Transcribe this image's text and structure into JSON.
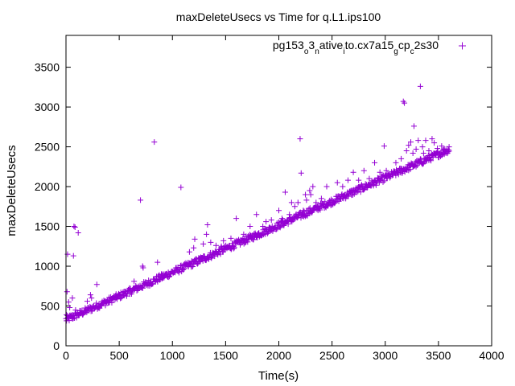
{
  "chart_data": {
    "type": "scatter",
    "title": "maxDeleteUsecs vs Time for q.L1.ips100",
    "xlabel": "Time(s)",
    "ylabel": "maxDeleteUsecs",
    "xlim": [
      0,
      4000
    ],
    "ylim": [
      0,
      3900
    ],
    "xticks": [
      0,
      500,
      1000,
      1500,
      2000,
      2500,
      3000,
      3500,
      4000
    ],
    "yticks": [
      0,
      500,
      1000,
      1500,
      2000,
      2500,
      3000,
      3500
    ],
    "grid": false,
    "legend_position": "top-right",
    "marker": "plus",
    "series": [
      {
        "name": "pg153_o3_native_ito.cx7a15_g cp_c2s30",
        "legend_parts": [
          {
            "t": "pg153",
            "sub": false
          },
          {
            "t": "o",
            "sub": true
          },
          {
            "t": "3",
            "sub": false
          },
          {
            "t": "n",
            "sub": true
          },
          {
            "t": "ative",
            "sub": false
          },
          {
            "t": "i",
            "sub": true
          },
          {
            "t": "to.cx7a15",
            "sub": false
          },
          {
            "t": "g",
            "sub": true
          },
          {
            "t": "cp",
            "sub": false
          },
          {
            "t": "c",
            "sub": true
          },
          {
            "t": "2s30",
            "sub": false
          }
        ],
        "color": "#9400d3",
        "trend": {
          "x_start": 0,
          "x_end": 3600,
          "y_start": 310,
          "y_end": 2450,
          "band": [
            -25,
            60
          ],
          "count": 720
        },
        "outliers": [
          [
            5,
            390
          ],
          [
            10,
            680
          ],
          [
            15,
            1150
          ],
          [
            25,
            550
          ],
          [
            35,
            480
          ],
          [
            60,
            600
          ],
          [
            70,
            1130
          ],
          [
            75,
            1500
          ],
          [
            85,
            1490
          ],
          [
            115,
            1420
          ],
          [
            90,
            450
          ],
          [
            130,
            420
          ],
          [
            200,
            560
          ],
          [
            240,
            600
          ],
          [
            290,
            770
          ],
          [
            230,
            640
          ],
          [
            330,
            520
          ],
          [
            400,
            540
          ],
          [
            470,
            600
          ],
          [
            600,
            650
          ],
          [
            640,
            810
          ],
          [
            720,
            1000
          ],
          [
            700,
            1830
          ],
          [
            725,
            980
          ],
          [
            830,
            2560
          ],
          [
            860,
            1050
          ],
          [
            900,
            900
          ],
          [
            1080,
            1990
          ],
          [
            1160,
            1180
          ],
          [
            1180,
            1000
          ],
          [
            1200,
            1230
          ],
          [
            1210,
            1340
          ],
          [
            1260,
            1100
          ],
          [
            1290,
            1280
          ],
          [
            1320,
            1400
          ],
          [
            1330,
            1520
          ],
          [
            1360,
            1300
          ],
          [
            1410,
            1260
          ],
          [
            1460,
            1250
          ],
          [
            1480,
            1320
          ],
          [
            1550,
            1350
          ],
          [
            1600,
            1600
          ],
          [
            1670,
            1400
          ],
          [
            1730,
            1500
          ],
          [
            1790,
            1650
          ],
          [
            1850,
            1500
          ],
          [
            1880,
            1560
          ],
          [
            1930,
            1580
          ],
          [
            2000,
            1700
          ],
          [
            2030,
            1600
          ],
          [
            2060,
            1930
          ],
          [
            2100,
            1650
          ],
          [
            2120,
            1800
          ],
          [
            2150,
            1750
          ],
          [
            2180,
            1800
          ],
          [
            2200,
            2600
          ],
          [
            2210,
            2170
          ],
          [
            2230,
            1700
          ],
          [
            2250,
            1900
          ],
          [
            2260,
            1830
          ],
          [
            2290,
            1950
          ],
          [
            2300,
            1900
          ],
          [
            2320,
            2000
          ],
          [
            2350,
            1800
          ],
          [
            2400,
            1850
          ],
          [
            2450,
            2000
          ],
          [
            2550,
            2050
          ],
          [
            2600,
            2000
          ],
          [
            2650,
            2080
          ],
          [
            2700,
            2180
          ],
          [
            2750,
            2080
          ],
          [
            2800,
            2200
          ],
          [
            2850,
            2100
          ],
          [
            2900,
            2300
          ],
          [
            2950,
            2180
          ],
          [
            2990,
            2510
          ],
          [
            3010,
            2200
          ],
          [
            3100,
            2300
          ],
          [
            3150,
            2350
          ],
          [
            3170,
            3070
          ],
          [
            3180,
            3050
          ],
          [
            3200,
            2450
          ],
          [
            3220,
            2520
          ],
          [
            3240,
            2560
          ],
          [
            3260,
            2420
          ],
          [
            3270,
            2760
          ],
          [
            3290,
            2470
          ],
          [
            3310,
            2580
          ],
          [
            3330,
            3260
          ],
          [
            3350,
            2500
          ],
          [
            3360,
            2420
          ],
          [
            3380,
            2580
          ],
          [
            3410,
            2450
          ],
          [
            3440,
            2600
          ],
          [
            3460,
            2550
          ],
          [
            3490,
            2480
          ],
          [
            3510,
            2400
          ],
          [
            3530,
            2510
          ],
          [
            3560,
            2470
          ],
          [
            3600,
            2500
          ]
        ]
      }
    ]
  }
}
